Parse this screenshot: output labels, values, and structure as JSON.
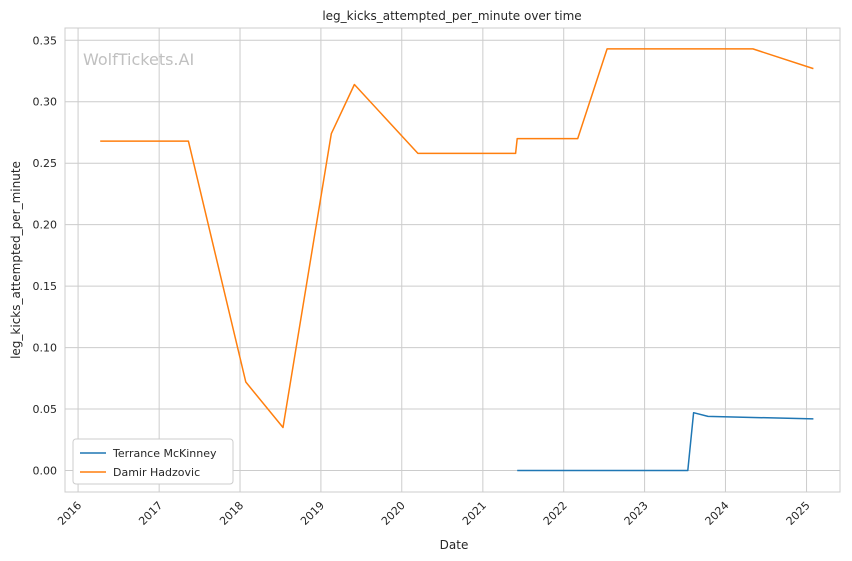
{
  "chart_data": {
    "type": "line",
    "title": "leg_kicks_attempted_per_minute over time",
    "xlabel": "Date",
    "ylabel": "leg_kicks_attempted_per_minute",
    "watermark": "WolfTickets.AI",
    "xlim": [
      "2015-11-03",
      "2025-06-01"
    ],
    "ylim": [
      -0.0175,
      0.36
    ],
    "x_ticks": [
      "2016",
      "2017",
      "2018",
      "2019",
      "2020",
      "2021",
      "2022",
      "2023",
      "2024",
      "2025"
    ],
    "y_ticks": [
      "0.00",
      "0.05",
      "0.10",
      "0.15",
      "0.20",
      "0.25",
      "0.30",
      "0.35"
    ],
    "grid": true,
    "legend_position": "lower-left",
    "series": [
      {
        "name": "Terrance McKinney",
        "color": "#1f77b4",
        "points": [
          [
            "2021-06-05",
            0.0
          ],
          [
            "2023-07-15",
            0.0
          ],
          [
            "2023-08-10",
            0.047
          ],
          [
            "2023-10-14",
            0.044
          ],
          [
            "2025-02-01",
            0.042
          ]
        ]
      },
      {
        "name": "Damir Hadzovic",
        "color": "#ff7f0e",
        "points": [
          [
            "2016-04-10",
            0.268
          ],
          [
            "2017-05-13",
            0.268
          ],
          [
            "2018-01-27",
            0.072
          ],
          [
            "2018-07-14",
            0.035
          ],
          [
            "2019-02-17",
            0.274
          ],
          [
            "2019-06-01",
            0.314
          ],
          [
            "2020-03-14",
            0.258
          ],
          [
            "2021-05-29",
            0.258
          ],
          [
            "2021-06-05",
            0.27
          ],
          [
            "2022-03-05",
            0.27
          ],
          [
            "2022-07-16",
            0.343
          ],
          [
            "2024-05-04",
            0.343
          ],
          [
            "2025-02-01",
            0.327
          ]
        ]
      }
    ]
  }
}
